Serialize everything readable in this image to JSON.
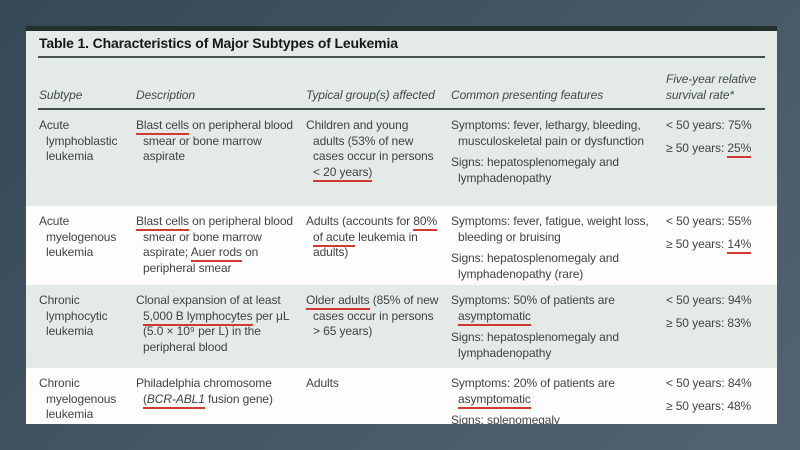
{
  "colors": {
    "slide_bg_top_left": "#364856",
    "slide_bg_bottom_right": "#536372",
    "table_bg": "#fdfdfc",
    "band_tint": "#e3eae8",
    "top_bar": "#232f2b",
    "rule": "#46504f",
    "text": "#3e4446",
    "title_text": "#14181a",
    "header_text": "#41494c",
    "annotation_red": "#d13a2c"
  },
  "table": {
    "title": "Table 1. Characteristics of Major Subtypes of Leukemia",
    "columns": [
      "Subtype",
      "Description",
      "Typical group(s) affected",
      "Common presenting features",
      "Five-year relative survival rate*"
    ],
    "rows": [
      {
        "subtype": "Acute lymphoblastic leukemia",
        "description": [
          {
            "t": "Blast cells",
            "u": true
          },
          {
            "t": " on peripheral blood smear or bone marrow aspirate"
          }
        ],
        "group": [
          {
            "t": "Children and young adults (53% of new cases occur in persons "
          },
          {
            "t": "< 20 years)",
            "u": true
          }
        ],
        "features": [
          [
            {
              "t": "Symptoms: fever, lethargy, bleeding, musculoskeletal pain or dysfunction"
            }
          ],
          [
            {
              "t": "Signs: hepatosplenomegaly and lymphadenopathy"
            }
          ]
        ],
        "survival": [
          [
            {
              "t": "< 50 years: 75%"
            }
          ],
          [
            {
              "t": "≥ 50 years: "
            },
            {
              "t": "25%",
              "u": true
            }
          ]
        ]
      },
      {
        "subtype": "Acute myelogenous leukemia",
        "description": [
          {
            "t": "Blast cells",
            "u": true
          },
          {
            "t": " on peripheral blood smear or bone marrow aspirate; "
          },
          {
            "t": "Auer rods",
            "u": true
          },
          {
            "t": " on peripheral smear"
          }
        ],
        "group": [
          {
            "t": "Adults (accounts for "
          },
          {
            "t": "80% of acute",
            "u": true
          },
          {
            "t": " leukemia in adults)"
          }
        ],
        "features": [
          [
            {
              "t": "Symptoms: fever, fatigue, weight loss, bleeding or bruising"
            }
          ],
          [
            {
              "t": "Signs: hepatosplenomegaly and lymphadenopathy (rare)"
            }
          ]
        ],
        "survival": [
          [
            {
              "t": "< 50 years: 55%"
            }
          ],
          [
            {
              "t": "≥ 50 years: "
            },
            {
              "t": "14%",
              "u": true
            }
          ]
        ]
      },
      {
        "subtype": "Chronic lymphocytic leukemia",
        "description": [
          {
            "t": "Clonal expansion of at least "
          },
          {
            "t": "5,000 B lymphocytes",
            "u": true
          },
          {
            "t": " per μL (5.0 × 10⁹ per L) in the peripheral blood"
          }
        ],
        "group": [
          {
            "t": "Older adults",
            "u": true
          },
          {
            "t": " (85% of new cases occur in persons > 65 years)"
          }
        ],
        "features": [
          [
            {
              "t": "Symptoms: 50% of patients are "
            },
            {
              "t": "asymptomatic",
              "u": true
            }
          ],
          [
            {
              "t": "Signs: hepatosplenomegaly and lymphadenopathy"
            }
          ]
        ],
        "survival": [
          [
            {
              "t": "< 50 years: 94%"
            }
          ],
          [
            {
              "t": "≥ 50 years: 83%"
            }
          ]
        ]
      },
      {
        "subtype": "Chronic myelogenous leukemia",
        "description": [
          {
            "t": "Philadelphia chromosome "
          },
          {
            "t": "(",
            "u": true
          },
          {
            "t": "BCR-ABL1",
            "u": true,
            "i": true
          },
          {
            "t": " fusion gene)"
          }
        ],
        "group": [
          {
            "t": "Adults"
          }
        ],
        "features": [
          [
            {
              "t": "Symptoms: 20% of patients are "
            },
            {
              "t": "asymptomatic",
              "u": true
            }
          ],
          [
            {
              "t": "Signs: splenomegaly"
            }
          ]
        ],
        "survival": [
          [
            {
              "t": "< 50 years: 84%"
            }
          ],
          [
            {
              "t": "≥ 50 years: 48%"
            }
          ]
        ]
      }
    ]
  }
}
